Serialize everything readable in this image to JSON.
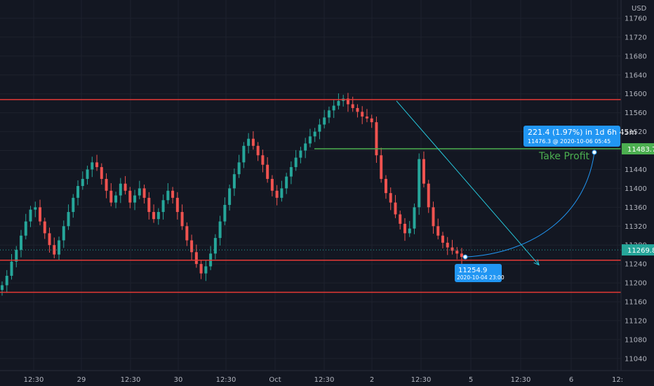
{
  "currency": "USD",
  "colors": {
    "background": "#131722",
    "grid": "#1e222d",
    "up": "#26a69a",
    "down": "#ef5350",
    "level_red": "#e53935",
    "level_green": "#4caf50",
    "projection": "#26c6da",
    "label_blue": "#2196f3",
    "current_price_tag": "#26a69a"
  },
  "price_axis": {
    "ticks": [
      11040,
      11080,
      11120,
      11160,
      11200,
      11240,
      11280,
      11320,
      11360,
      11400,
      11440,
      11480,
      11520,
      11560,
      11600,
      11640,
      11680,
      11720,
      11760
    ]
  },
  "time_axis": {
    "labels": [
      "12:30",
      "29",
      "12:30",
      "30",
      "12:30",
      "Oct",
      "12:30",
      "2",
      "12:30",
      "5",
      "12:30",
      "6",
      "12:"
    ]
  },
  "annotations": {
    "take_profit_text": "Take Profit",
    "measure_text": "221.4 (1.97%) in 1d 6h 45m",
    "measure_sub": "11476.3 @ 2020-10-06  05:45",
    "entry_price": "11254.9",
    "entry_time": "2020-10-04 23:00"
  },
  "price_tags": {
    "take_profit": "11483.7",
    "current": "11269.8"
  },
  "chart_data": {
    "type": "candlestick",
    "symbol_currency": "USD",
    "ylim": [
      11020,
      11790
    ],
    "horizontal_levels": [
      {
        "kind": "resistance",
        "price": 11588,
        "color": "red"
      },
      {
        "kind": "take_profit",
        "price": 11483.7,
        "color": "green"
      },
      {
        "kind": "support",
        "price": 11248,
        "color": "red"
      },
      {
        "kind": "support",
        "price": 11180,
        "color": "red"
      }
    ],
    "current_price": 11269.8,
    "entry_point": {
      "price": 11254.9,
      "time": "2020-10-04 23:00"
    },
    "target_point": {
      "price": 11476.3,
      "time": "2020-10-06 05:45"
    },
    "measure": {
      "change": 221.4,
      "percent": 1.97,
      "duration": "1d 6h 45m"
    },
    "trend_line": {
      "from_price": 11585,
      "to_price": 11238
    },
    "closes": [
      11195,
      11215,
      11245,
      11270,
      11300,
      11330,
      11355,
      11360,
      11330,
      11305,
      11280,
      11260,
      11290,
      11320,
      11350,
      11380,
      11405,
      11420,
      11440,
      11455,
      11445,
      11420,
      11395,
      11370,
      11385,
      11410,
      11395,
      11370,
      11385,
      11400,
      11380,
      11350,
      11335,
      11350,
      11375,
      11395,
      11380,
      11350,
      11320,
      11290,
      11265,
      11240,
      11220,
      11235,
      11262,
      11295,
      11330,
      11365,
      11400,
      11430,
      11455,
      11490,
      11505,
      11490,
      11470,
      11450,
      11420,
      11395,
      11380,
      11400,
      11425,
      11445,
      11465,
      11480,
      11495,
      11510,
      11520,
      11535,
      11550,
      11565,
      11575,
      11585,
      11590,
      11578,
      11570,
      11562,
      11552,
      11548,
      11540,
      11470,
      11420,
      11390,
      11370,
      11345,
      11325,
      11305,
      11315,
      11360,
      11462,
      11410,
      11360,
      11320,
      11300,
      11285,
      11275,
      11268,
      11262,
      11255
    ]
  }
}
